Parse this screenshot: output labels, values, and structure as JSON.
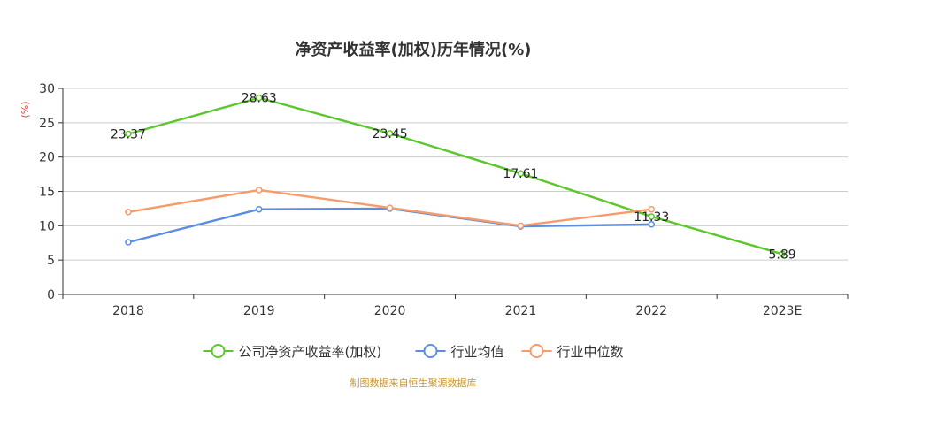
{
  "chart_data": {
    "type": "line",
    "title": "净资产收益率(加权)历年情况(%)",
    "ylabel": "(%)",
    "xlabel": "",
    "categories": [
      "2018",
      "2019",
      "2020",
      "2021",
      "2022",
      "2023E"
    ],
    "ylim": [
      0,
      30
    ],
    "yticks": [
      0,
      5,
      10,
      15,
      20,
      25,
      30
    ],
    "grid": true,
    "legend_position": "bottom",
    "series": [
      {
        "name": "公司净资产收益率(加权)",
        "color": "#5cc72c",
        "values": [
          23.37,
          28.63,
          23.45,
          17.61,
          11.33,
          5.89
        ],
        "show_labels": true
      },
      {
        "name": "行业均值",
        "color": "#5b8ee0",
        "values": [
          7.6,
          12.4,
          12.5,
          9.9,
          10.2,
          null
        ],
        "show_labels": false
      },
      {
        "name": "行业中位数",
        "color": "#f79b6b",
        "values": [
          12.0,
          15.2,
          12.6,
          10.0,
          12.4,
          null
        ],
        "show_labels": false
      }
    ],
    "source": "制图数据来自恒生聚源数据库"
  }
}
